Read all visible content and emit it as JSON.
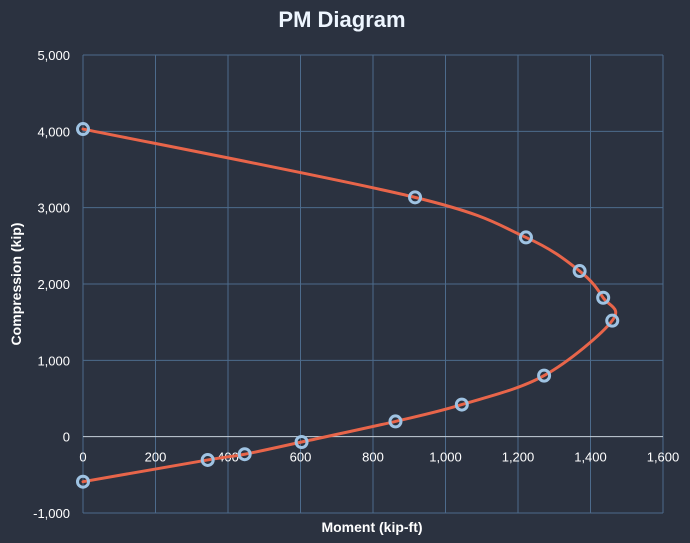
{
  "chart_data": {
    "type": "scatter",
    "title": "PM Diagram",
    "xlabel": "Moment (kip-ft)",
    "ylabel": "Compression (kip)",
    "xlim": [
      0,
      1600
    ],
    "ylim": [
      -1000,
      5000
    ],
    "xticks": [
      0,
      200,
      400,
      600,
      800,
      1000,
      1200,
      1400,
      1600
    ],
    "yticks": [
      -1000,
      0,
      1000,
      2000,
      3000,
      4000,
      5000
    ],
    "xtick_labels": [
      "0",
      "200",
      "400",
      "600",
      "800",
      "1,000",
      "1,200",
      "1,400",
      "1,600"
    ],
    "ytick_labels": [
      "-1,000",
      "0",
      "1,000",
      "2,000",
      "3,000",
      "4,000",
      "5,000"
    ],
    "grid": true,
    "colors": {
      "background": "#2b3240",
      "curve": "#e8654a",
      "marker": "#9fc3e3",
      "grid": "#4d6b8c"
    },
    "series": [
      {
        "points": [
          [
            0,
            4030
          ],
          [
            916,
            3135
          ],
          [
            1222,
            2610
          ],
          [
            1370,
            2170
          ],
          [
            1435,
            1820
          ],
          [
            1460,
            1520
          ],
          [
            1272,
            800
          ],
          [
            1045,
            420
          ],
          [
            862,
            200
          ],
          [
            603,
            -70
          ],
          [
            446,
            -230
          ],
          [
            344,
            -305
          ],
          [
            0,
            -590
          ]
        ]
      }
    ]
  }
}
